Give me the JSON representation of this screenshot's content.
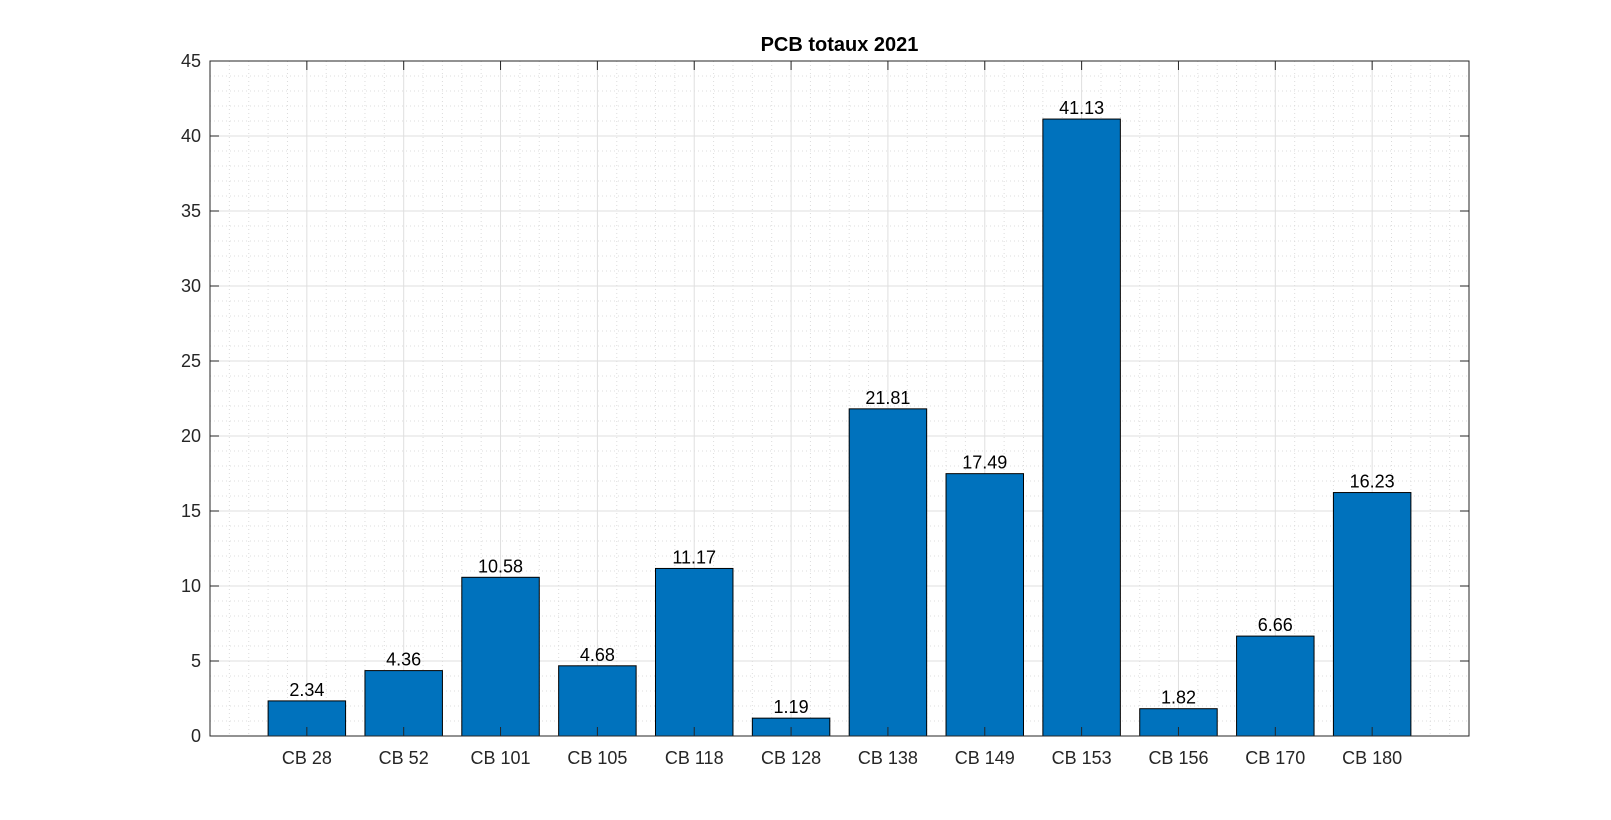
{
  "chart_data": {
    "type": "bar",
    "title": "PCB totaux 2021",
    "xlabel": "",
    "ylabel": "",
    "categories": [
      "CB 28",
      "CB 52",
      "CB 101",
      "CB 105",
      "CB 118",
      "CB 128",
      "CB 138",
      "CB 149",
      "CB 153",
      "CB 156",
      "CB 170",
      "CB 180"
    ],
    "values": [
      2.34,
      4.36,
      10.58,
      4.68,
      11.17,
      1.19,
      21.81,
      17.49,
      41.13,
      1.82,
      6.66,
      16.23
    ],
    "data_labels": [
      "2.34",
      "4.36",
      "10.58",
      "4.68",
      "11.17",
      "1.19",
      "21.81",
      "17.49",
      "41.13",
      "1.82",
      "6.66",
      "16.23"
    ],
    "ylim": [
      0,
      45
    ],
    "yticks": [
      0,
      5,
      10,
      15,
      20,
      25,
      30,
      35,
      40,
      45
    ],
    "grid": true,
    "minor_grid": true,
    "legend": "none",
    "bar_color": "#0072BD"
  }
}
